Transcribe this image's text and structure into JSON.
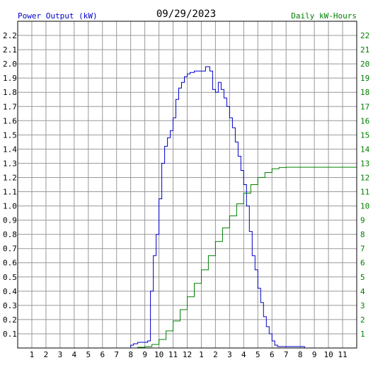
{
  "header": {
    "left_label": "Power Output (kW)",
    "date": "09/29/2023",
    "right_label": "Daily kW-Hours"
  },
  "colors": {
    "power": "#0000cc",
    "energy": "#008000",
    "grid": "#999999",
    "text": "#000000"
  },
  "chart_data": {
    "type": "line",
    "title": "09/29/2023",
    "xlabel": "",
    "ylabel": "Power Output (kW)",
    "y2label": "Daily kW-Hours",
    "x_ticks": [
      "1",
      "2",
      "3",
      "4",
      "5",
      "6",
      "7",
      "8",
      "9",
      "10",
      "11",
      "12",
      "1",
      "2",
      "3",
      "4",
      "5",
      "6",
      "7",
      "8",
      "9",
      "10",
      "11"
    ],
    "y_ticks": [
      "0.1",
      "0.2",
      "0.3",
      "0.4",
      "0.5",
      "0.6",
      "0.7",
      "0.8",
      "0.9",
      "1.0",
      "1.1",
      "1.2",
      "1.3",
      "1.4",
      "1.5",
      "1.6",
      "1.7",
      "1.8",
      "1.9",
      "2.0",
      "2.1",
      "2.2"
    ],
    "y2_ticks": [
      "1",
      "2",
      "3",
      "4",
      "5",
      "6",
      "7",
      "8",
      "9",
      "10",
      "11",
      "12",
      "13",
      "14",
      "15",
      "16",
      "17",
      "18",
      "19",
      "20",
      "21",
      "22"
    ],
    "xlim": [
      0,
      24
    ],
    "ylim": [
      0,
      2.3
    ],
    "y2lim": [
      0,
      23
    ],
    "grid": true,
    "x_unit": "hour of day",
    "series": [
      {
        "name": "Power Output (kW)",
        "axis": "left",
        "x": [
          0,
          7.85,
          8.0,
          8.2,
          8.5,
          9.0,
          9.2,
          9.4,
          9.6,
          9.8,
          10.0,
          10.2,
          10.4,
          10.6,
          10.8,
          11.0,
          11.2,
          11.4,
          11.6,
          11.8,
          12.0,
          12.2,
          12.5,
          12.8,
          13.0,
          13.3,
          13.6,
          13.8,
          14.0,
          14.2,
          14.4,
          14.6,
          14.8,
          15.0,
          15.2,
          15.4,
          15.6,
          15.8,
          16.0,
          16.2,
          16.4,
          16.6,
          16.8,
          17.0,
          17.2,
          17.4,
          17.6,
          17.8,
          18.0,
          18.2,
          18.4,
          18.6,
          18.8,
          19.0,
          19.2,
          19.5,
          20.0,
          20.3,
          20.5,
          24.0
        ],
        "values": [
          0,
          0,
          0.02,
          0.03,
          0.04,
          0.04,
          0.05,
          0.4,
          0.65,
          0.8,
          1.05,
          1.3,
          1.42,
          1.48,
          1.53,
          1.62,
          1.75,
          1.83,
          1.87,
          1.91,
          1.93,
          1.94,
          1.95,
          1.95,
          1.95,
          1.98,
          1.95,
          1.82,
          1.8,
          1.87,
          1.82,
          1.76,
          1.7,
          1.62,
          1.55,
          1.45,
          1.35,
          1.25,
          1.15,
          1.0,
          0.82,
          0.65,
          0.55,
          0.42,
          0.32,
          0.22,
          0.15,
          0.1,
          0.05,
          0.02,
          0.01,
          0.01,
          0.01,
          0.01,
          0.01,
          0.01,
          0.01,
          0.0,
          0.0,
          0.0
        ]
      },
      {
        "name": "Daily kW-Hours",
        "axis": "right",
        "x": [
          0,
          7.9,
          8.5,
          9.0,
          9.5,
          10.0,
          10.5,
          11.0,
          11.5,
          12.0,
          12.5,
          13.0,
          13.5,
          14.0,
          14.5,
          15.0,
          15.5,
          16.0,
          16.5,
          17.0,
          17.5,
          18.0,
          18.5,
          19.0,
          19.5,
          20.0,
          21.0,
          22.0,
          23.0,
          24.0
        ],
        "values": [
          0,
          0,
          0.05,
          0.1,
          0.25,
          0.6,
          1.2,
          1.9,
          2.7,
          3.6,
          4.55,
          5.5,
          6.5,
          7.5,
          8.45,
          9.3,
          10.15,
          10.9,
          11.5,
          12.0,
          12.35,
          12.62,
          12.7,
          12.72,
          12.72,
          12.72,
          12.72,
          12.72,
          12.72,
          12.72
        ]
      }
    ]
  }
}
